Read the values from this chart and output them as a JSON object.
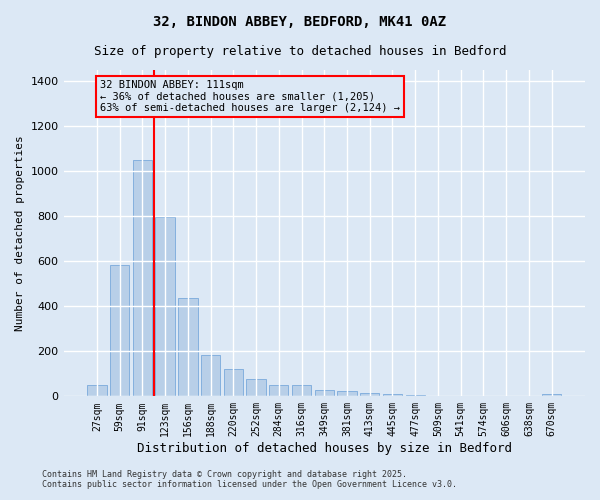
{
  "title1": "32, BINDON ABBEY, BEDFORD, MK41 0AZ",
  "title2": "Size of property relative to detached houses in Bedford",
  "xlabel": "Distribution of detached houses by size in Bedford",
  "ylabel": "Number of detached properties",
  "categories": [
    "27sqm",
    "59sqm",
    "91sqm",
    "123sqm",
    "156sqm",
    "188sqm",
    "220sqm",
    "252sqm",
    "284sqm",
    "316sqm",
    "349sqm",
    "381sqm",
    "413sqm",
    "445sqm",
    "477sqm",
    "509sqm",
    "541sqm",
    "574sqm",
    "606sqm",
    "638sqm",
    "670sqm"
  ],
  "values": [
    50,
    583,
    1050,
    795,
    435,
    183,
    123,
    75,
    50,
    50,
    30,
    22,
    15,
    10,
    8,
    2,
    0,
    0,
    0,
    0,
    10
  ],
  "bar_color": "#b8cfe8",
  "bar_edge_color": "#6a9fd8",
  "vline_color": "red",
  "vline_x_index": 2.5,
  "annotation_text": "32 BINDON ABBEY: 111sqm\n← 36% of detached houses are smaller (1,205)\n63% of semi-detached houses are larger (2,124) →",
  "annotation_box_edge_color": "red",
  "annotation_fontsize": 7.5,
  "ylim": [
    0,
    1450
  ],
  "yticks": [
    0,
    200,
    400,
    600,
    800,
    1000,
    1200,
    1400
  ],
  "bg_color": "#dce8f5",
  "plot_bg_color": "#dce8f5",
  "grid_color": "#ffffff",
  "footer_text": "Contains HM Land Registry data © Crown copyright and database right 2025.\nContains public sector information licensed under the Open Government Licence v3.0.",
  "title_fontsize": 10,
  "subtitle_fontsize": 9,
  "xlabel_fontsize": 9,
  "ylabel_fontsize": 8
}
